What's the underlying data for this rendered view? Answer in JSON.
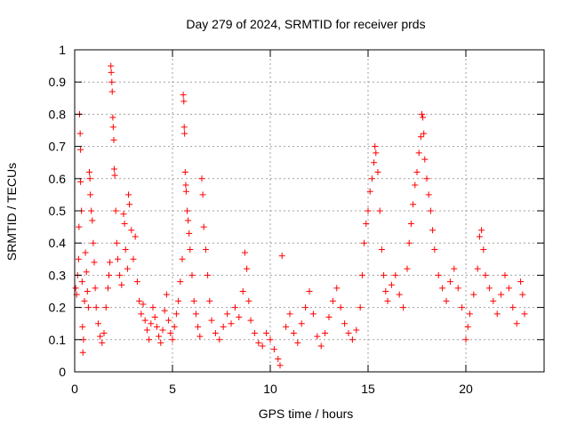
{
  "chart_data": {
    "type": "scatter",
    "title": "Day 279 of 2024, SRMTID for receiver prds",
    "xlabel": "GPS time / hours",
    "ylabel": "SRMTID / TECUs",
    "xlim": [
      0,
      24
    ],
    "ylim": [
      0,
      1
    ],
    "xticks": [
      0,
      5,
      10,
      15,
      20
    ],
    "yticks": [
      0,
      0.1,
      0.2,
      0.3,
      0.4,
      0.5,
      0.6,
      0.7,
      0.8,
      0.9,
      1
    ],
    "xtick_labels": [
      "0",
      "5",
      "10",
      "15",
      "20"
    ],
    "ytick_labels": [
      "0",
      "0.1",
      "0.2",
      "0.3",
      "0.4",
      "0.5",
      "0.6",
      "0.7",
      "0.8",
      "0.9",
      "1"
    ],
    "grid": true,
    "marker": "+",
    "series_color": "#ff0000",
    "series": [
      {
        "name": "SRMTID",
        "points": [
          [
            0.05,
            0.26
          ],
          [
            0.1,
            0.24
          ],
          [
            0.15,
            0.3
          ],
          [
            0.2,
            0.35
          ],
          [
            0.22,
            0.45
          ],
          [
            0.25,
            0.8
          ],
          [
            0.28,
            0.74
          ],
          [
            0.3,
            0.69
          ],
          [
            0.3,
            0.59
          ],
          [
            0.35,
            0.5
          ],
          [
            0.38,
            0.28
          ],
          [
            0.4,
            0.14
          ],
          [
            0.42,
            0.06
          ],
          [
            0.45,
            0.1
          ],
          [
            0.5,
            0.22
          ],
          [
            0.55,
            0.37
          ],
          [
            0.6,
            0.31
          ],
          [
            0.65,
            0.25
          ],
          [
            0.7,
            0.2
          ],
          [
            0.75,
            0.62
          ],
          [
            0.78,
            0.6
          ],
          [
            0.8,
            0.55
          ],
          [
            0.85,
            0.5
          ],
          [
            0.9,
            0.47
          ],
          [
            0.95,
            0.4
          ],
          [
            1.0,
            0.34
          ],
          [
            1.05,
            0.26
          ],
          [
            1.1,
            0.2
          ],
          [
            1.2,
            0.15
          ],
          [
            1.3,
            0.11
          ],
          [
            1.4,
            0.09
          ],
          [
            1.5,
            0.12
          ],
          [
            1.6,
            0.2
          ],
          [
            1.7,
            0.26
          ],
          [
            1.75,
            0.3
          ],
          [
            1.8,
            0.34
          ],
          [
            1.85,
            0.95
          ],
          [
            1.87,
            0.93
          ],
          [
            1.9,
            0.9
          ],
          [
            1.92,
            0.87
          ],
          [
            1.95,
            0.79
          ],
          [
            1.97,
            0.76
          ],
          [
            2.0,
            0.72
          ],
          [
            2.02,
            0.63
          ],
          [
            2.05,
            0.61
          ],
          [
            2.1,
            0.5
          ],
          [
            2.15,
            0.4
          ],
          [
            2.2,
            0.35
          ],
          [
            2.3,
            0.3
          ],
          [
            2.4,
            0.27
          ],
          [
            2.5,
            0.49
          ],
          [
            2.55,
            0.46
          ],
          [
            2.6,
            0.38
          ],
          [
            2.7,
            0.32
          ],
          [
            2.75,
            0.55
          ],
          [
            2.8,
            0.52
          ],
          [
            2.9,
            0.44
          ],
          [
            3.0,
            0.35
          ],
          [
            3.1,
            0.42
          ],
          [
            3.2,
            0.28
          ],
          [
            3.3,
            0.22
          ],
          [
            3.4,
            0.18
          ],
          [
            3.5,
            0.21
          ],
          [
            3.6,
            0.16
          ],
          [
            3.7,
            0.13
          ],
          [
            3.8,
            0.1
          ],
          [
            3.9,
            0.15
          ],
          [
            4.0,
            0.2
          ],
          [
            4.1,
            0.17
          ],
          [
            4.2,
            0.14
          ],
          [
            4.3,
            0.11
          ],
          [
            4.4,
            0.09
          ],
          [
            4.5,
            0.13
          ],
          [
            4.6,
            0.19
          ],
          [
            4.7,
            0.24
          ],
          [
            4.8,
            0.16
          ],
          [
            4.9,
            0.12
          ],
          [
            5.0,
            0.1
          ],
          [
            5.1,
            0.14
          ],
          [
            5.2,
            0.18
          ],
          [
            5.3,
            0.22
          ],
          [
            5.4,
            0.28
          ],
          [
            5.5,
            0.35
          ],
          [
            5.55,
            0.86
          ],
          [
            5.58,
            0.84
          ],
          [
            5.6,
            0.76
          ],
          [
            5.62,
            0.74
          ],
          [
            5.65,
            0.62
          ],
          [
            5.68,
            0.58
          ],
          [
            5.7,
            0.56
          ],
          [
            5.75,
            0.5
          ],
          [
            5.8,
            0.47
          ],
          [
            5.85,
            0.43
          ],
          [
            5.9,
            0.38
          ],
          [
            6.0,
            0.3
          ],
          [
            6.1,
            0.22
          ],
          [
            6.2,
            0.18
          ],
          [
            6.3,
            0.14
          ],
          [
            6.4,
            0.11
          ],
          [
            6.5,
            0.6
          ],
          [
            6.55,
            0.55
          ],
          [
            6.6,
            0.45
          ],
          [
            6.7,
            0.38
          ],
          [
            6.8,
            0.3
          ],
          [
            6.9,
            0.22
          ],
          [
            7.0,
            0.16
          ],
          [
            7.2,
            0.12
          ],
          [
            7.4,
            0.1
          ],
          [
            7.6,
            0.14
          ],
          [
            7.8,
            0.18
          ],
          [
            8.0,
            0.15
          ],
          [
            8.2,
            0.2
          ],
          [
            8.4,
            0.17
          ],
          [
            8.6,
            0.25
          ],
          [
            8.7,
            0.37
          ],
          [
            8.8,
            0.32
          ],
          [
            8.9,
            0.22
          ],
          [
            9.0,
            0.16
          ],
          [
            9.2,
            0.12
          ],
          [
            9.4,
            0.09
          ],
          [
            9.6,
            0.08
          ],
          [
            9.8,
            0.12
          ],
          [
            10.0,
            0.1
          ],
          [
            10.2,
            0.07
          ],
          [
            10.4,
            0.04
          ],
          [
            10.5,
            0.02
          ],
          [
            10.6,
            0.36
          ],
          [
            10.8,
            0.14
          ],
          [
            11.0,
            0.18
          ],
          [
            11.2,
            0.12
          ],
          [
            11.4,
            0.09
          ],
          [
            11.6,
            0.15
          ],
          [
            11.8,
            0.2
          ],
          [
            12.0,
            0.25
          ],
          [
            12.2,
            0.18
          ],
          [
            12.4,
            0.11
          ],
          [
            12.6,
            0.08
          ],
          [
            12.8,
            0.12
          ],
          [
            13.0,
            0.17
          ],
          [
            13.2,
            0.22
          ],
          [
            13.4,
            0.26
          ],
          [
            13.6,
            0.2
          ],
          [
            13.8,
            0.15
          ],
          [
            14.0,
            0.12
          ],
          [
            14.2,
            0.1
          ],
          [
            14.4,
            0.13
          ],
          [
            14.6,
            0.2
          ],
          [
            14.7,
            0.3
          ],
          [
            14.8,
            0.4
          ],
          [
            14.9,
            0.46
          ],
          [
            15.0,
            0.5
          ],
          [
            15.1,
            0.56
          ],
          [
            15.2,
            0.6
          ],
          [
            15.3,
            0.65
          ],
          [
            15.35,
            0.7
          ],
          [
            15.4,
            0.68
          ],
          [
            15.5,
            0.62
          ],
          [
            15.6,
            0.5
          ],
          [
            15.7,
            0.38
          ],
          [
            15.8,
            0.3
          ],
          [
            15.9,
            0.25
          ],
          [
            16.0,
            0.22
          ],
          [
            16.2,
            0.27
          ],
          [
            16.4,
            0.3
          ],
          [
            16.6,
            0.24
          ],
          [
            16.8,
            0.2
          ],
          [
            17.0,
            0.32
          ],
          [
            17.1,
            0.4
          ],
          [
            17.2,
            0.46
          ],
          [
            17.3,
            0.52
          ],
          [
            17.4,
            0.58
          ],
          [
            17.5,
            0.62
          ],
          [
            17.6,
            0.68
          ],
          [
            17.7,
            0.73
          ],
          [
            17.75,
            0.8
          ],
          [
            17.8,
            0.79
          ],
          [
            17.85,
            0.74
          ],
          [
            17.9,
            0.66
          ],
          [
            18.0,
            0.6
          ],
          [
            18.1,
            0.55
          ],
          [
            18.2,
            0.5
          ],
          [
            18.3,
            0.44
          ],
          [
            18.4,
            0.38
          ],
          [
            18.6,
            0.3
          ],
          [
            18.8,
            0.26
          ],
          [
            19.0,
            0.22
          ],
          [
            19.2,
            0.28
          ],
          [
            19.4,
            0.32
          ],
          [
            19.6,
            0.26
          ],
          [
            19.8,
            0.2
          ],
          [
            20.0,
            0.1
          ],
          [
            20.1,
            0.14
          ],
          [
            20.2,
            0.18
          ],
          [
            20.4,
            0.24
          ],
          [
            20.6,
            0.32
          ],
          [
            20.7,
            0.42
          ],
          [
            20.8,
            0.44
          ],
          [
            20.9,
            0.38
          ],
          [
            21.0,
            0.3
          ],
          [
            21.2,
            0.26
          ],
          [
            21.4,
            0.22
          ],
          [
            21.6,
            0.18
          ],
          [
            21.8,
            0.24
          ],
          [
            22.0,
            0.3
          ],
          [
            22.2,
            0.26
          ],
          [
            22.4,
            0.2
          ],
          [
            22.6,
            0.15
          ],
          [
            22.8,
            0.28
          ],
          [
            22.9,
            0.24
          ],
          [
            23.0,
            0.18
          ]
        ]
      }
    ]
  }
}
